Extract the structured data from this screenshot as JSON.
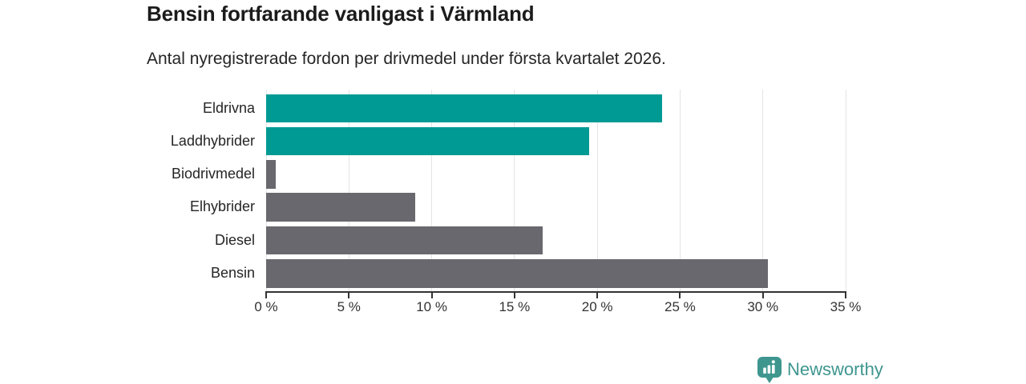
{
  "header": {
    "title": "Bensin fortfarande vanligast i Värmland",
    "subtitle": "Antal nyregistrerade fordon per drivmedel under första kvartalet 2026."
  },
  "chart_data": {
    "type": "bar",
    "orientation": "horizontal",
    "title": "Bensin fortfarande vanligast i Värmland",
    "subtitle": "Antal nyregistrerade fordon per drivmedel under första kvartalet 2026.",
    "categories": [
      "Eldrivna",
      "Laddhybrider",
      "Biodrivmedel",
      "Elhybrider",
      "Diesel",
      "Bensin"
    ],
    "values": [
      23.9,
      19.5,
      0.6,
      9.0,
      16.7,
      30.3
    ],
    "unit": "%",
    "bar_colors": [
      "#009a94",
      "#009a94",
      "#69686e",
      "#69686e",
      "#69686e",
      "#69686e"
    ],
    "xlabel": "",
    "ylabel": "",
    "xlim": [
      0,
      35
    ],
    "x_ticks": [
      0,
      5,
      10,
      15,
      20,
      25,
      30,
      35
    ],
    "x_tick_labels": [
      "0 %",
      "5 %",
      "10 %",
      "15 %",
      "20 %",
      "25 %",
      "30 %",
      "35 %"
    ],
    "grid": "vertical",
    "legend": "none"
  },
  "colors": {
    "highlight": "#009a94",
    "neutral": "#69686e",
    "axis": "#333333",
    "gridline": "#e4e4e4",
    "title_text": "#1b1b1b",
    "body_text": "#252525",
    "logo": "#3e968f"
  },
  "branding": {
    "logo_text": "Newsworthy",
    "logo_icon": "bar-chart-pin-icon"
  }
}
